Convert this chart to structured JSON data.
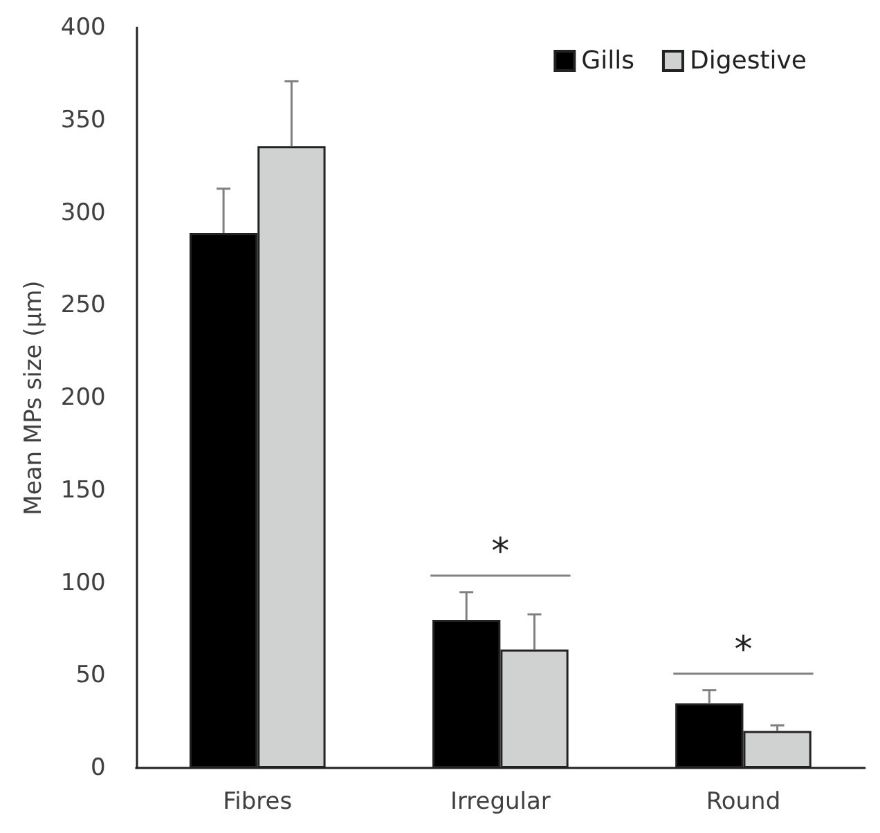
{
  "chart_data": {
    "type": "bar",
    "ylabel": "Mean MPs size (µm)",
    "categories": [
      "Fibres",
      "Irregular",
      "Round"
    ],
    "series": [
      {
        "name": "Gills",
        "color": "#000000",
        "values": [
          289,
          80,
          35
        ],
        "errors": [
          [
            289,
            313
          ],
          [
            80,
            95
          ],
          [
            35,
            42
          ]
        ]
      },
      {
        "name": "Digestive",
        "color": "#d0d2d1",
        "values": [
          336,
          64,
          20
        ],
        "errors": [
          [
            336,
            371
          ],
          [
            64,
            83
          ],
          [
            20,
            23
          ]
        ]
      }
    ],
    "ylim": [
      0,
      400
    ],
    "yticks": [
      0,
      50,
      100,
      150,
      200,
      250,
      300,
      350,
      400
    ],
    "grid": false,
    "legend": "top right",
    "annotations": [
      "*",
      "*"
    ]
  }
}
